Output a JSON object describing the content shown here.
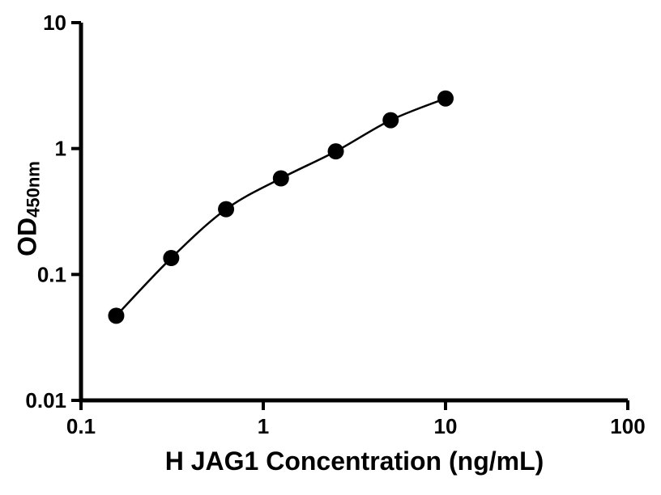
{
  "chart_data": {
    "type": "scatter",
    "title": "",
    "xlabel": "H JAG1 Concentration (ng/mL)",
    "ylabel_main": "OD",
    "ylabel_sub": "450nm",
    "x_scale": "log",
    "y_scale": "log",
    "xlim": [
      0.1,
      100
    ],
    "ylim": [
      0.01,
      10
    ],
    "x_ticks": [
      0.1,
      1,
      10,
      100
    ],
    "x_tick_labels": [
      "0.1",
      "1",
      "10",
      "100"
    ],
    "y_ticks": [
      0.01,
      0.1,
      1,
      10
    ],
    "y_tick_labels": [
      "0.01",
      "0.1",
      "1",
      "10"
    ],
    "x": [
      0.156,
      0.3125,
      0.625,
      1.25,
      2.5,
      5,
      10
    ],
    "y": [
      0.047,
      0.135,
      0.33,
      0.58,
      0.95,
      1.68,
      2.5
    ],
    "marker_color": "#000000",
    "line_color": "#000000",
    "axis_color": "#000000",
    "grid": false,
    "legend": null
  }
}
